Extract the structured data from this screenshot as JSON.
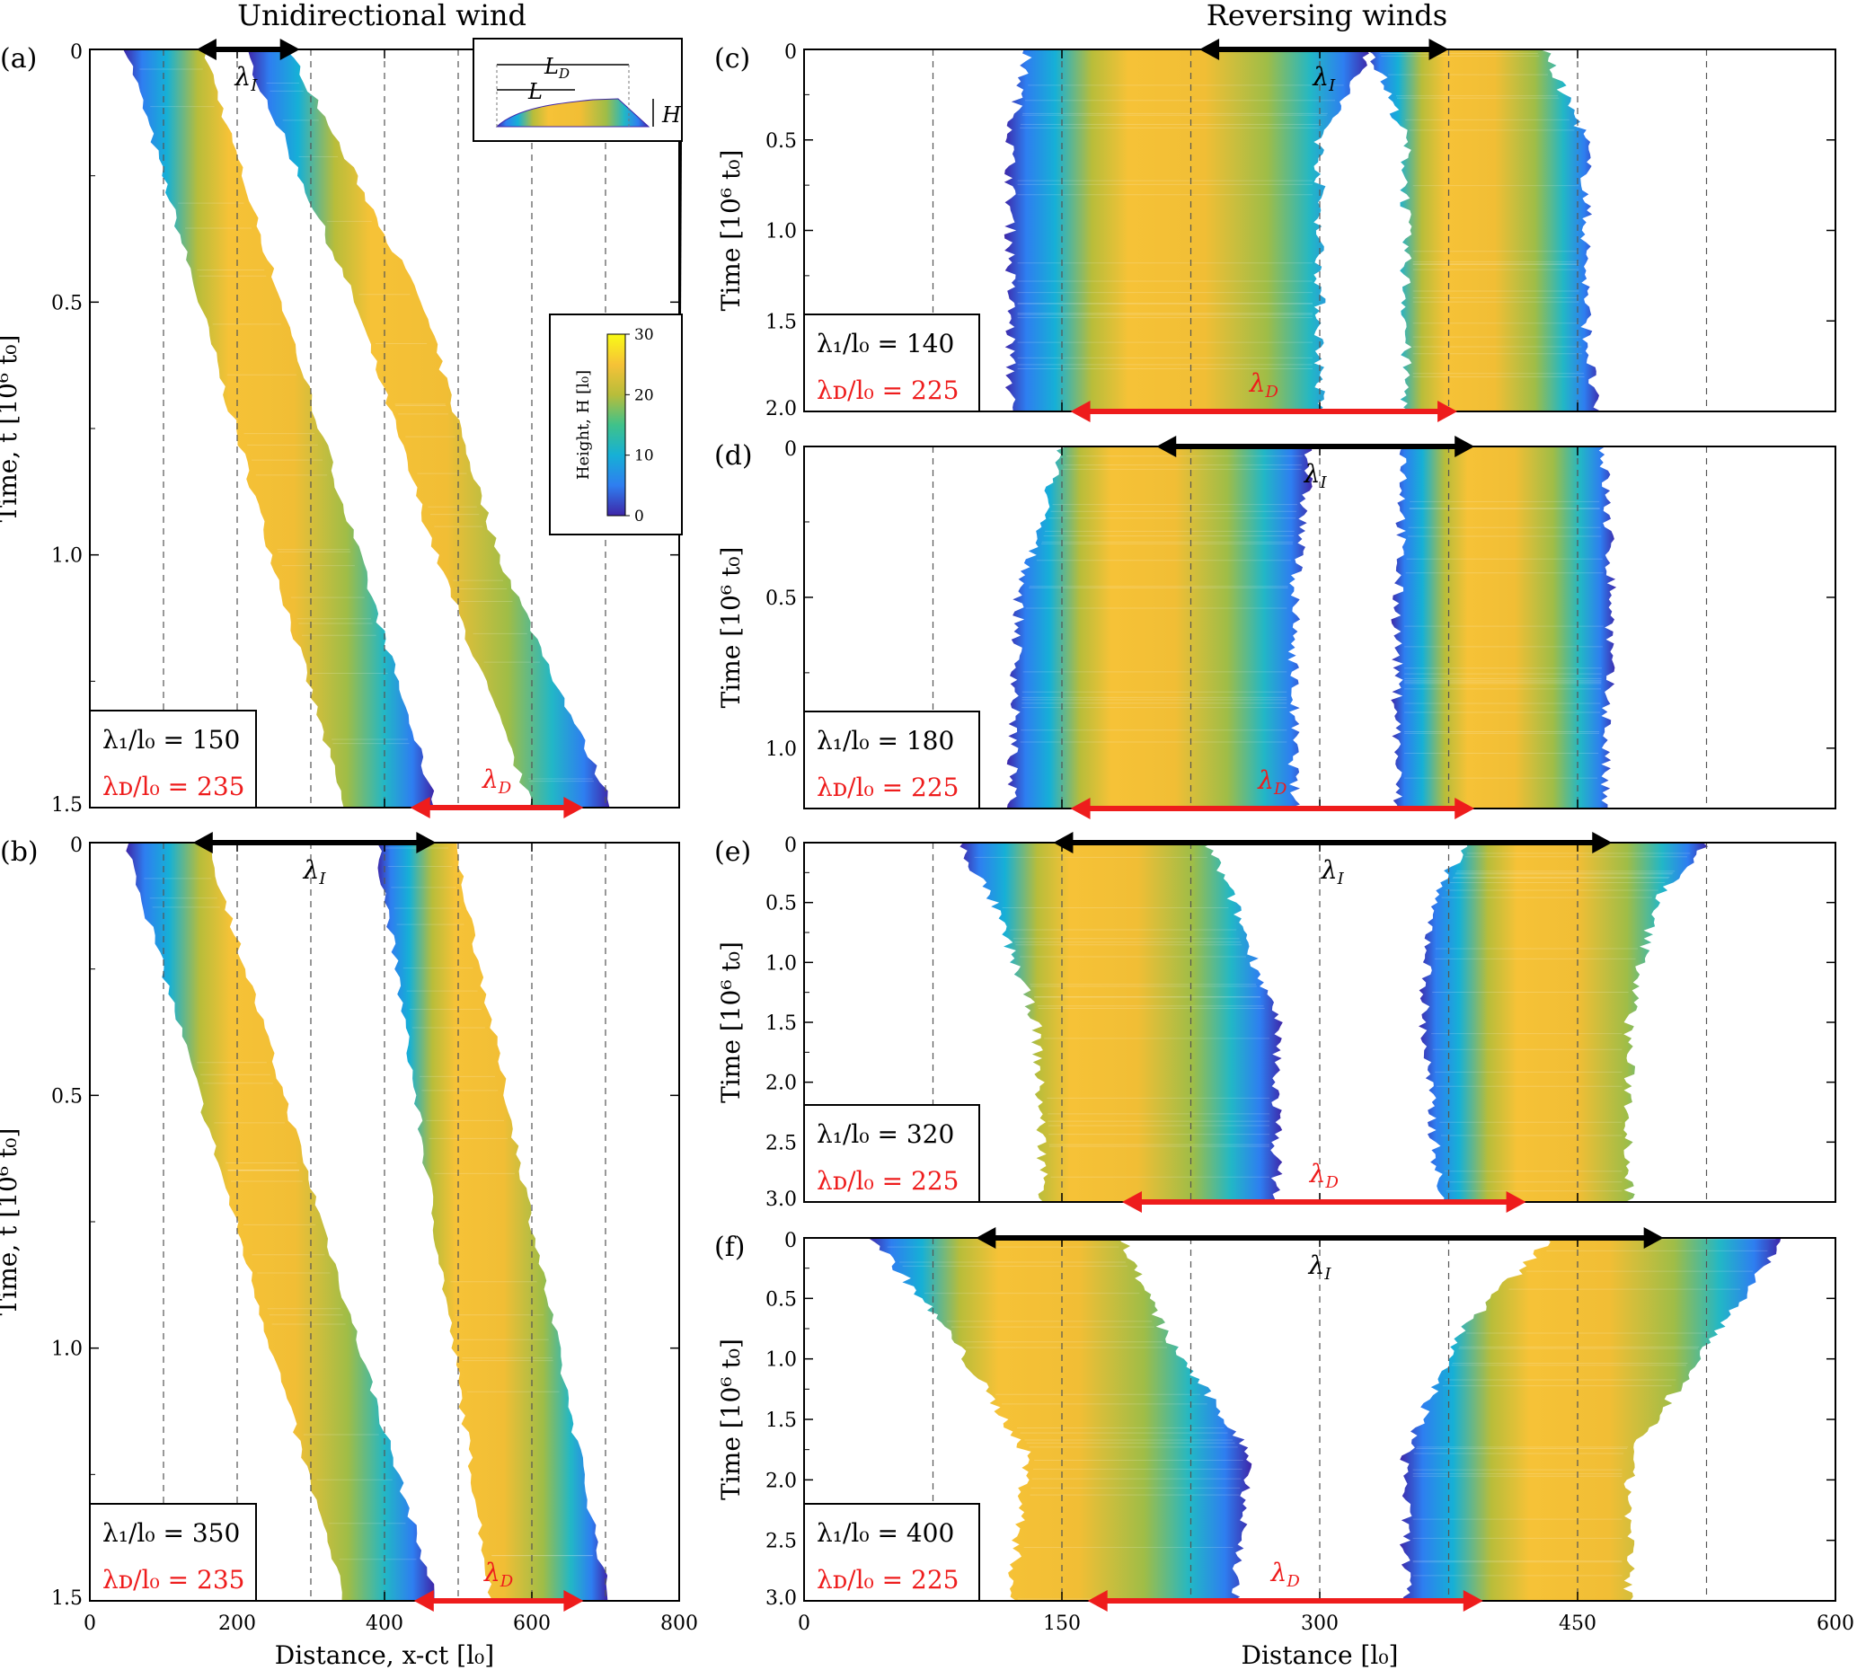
{
  "figure": {
    "left_heading": "Unidirectional wind",
    "right_heading": "Reversing winds",
    "colors": {
      "arrow_interaction": "#000000",
      "arrow_dune": "#ee1c1c",
      "dune_label": "#ee1c1c",
      "frame": "#000000",
      "gridline": "#555555"
    },
    "colorbar": {
      "label": "Height, H [l₀]",
      "ticks": [
        "0",
        "10",
        "20",
        "30"
      ],
      "range": [
        0,
        30
      ],
      "colormap": [
        "#3e26a8",
        "#2e7ef0",
        "#16b0d6",
        "#3fc28a",
        "#b8bd3a",
        "#f6c237",
        "#f9fb15"
      ]
    },
    "inset": {
      "labels": [
        "L",
        "L",
        "D",
        "H"
      ],
      "description_labels": {
        "LD": "L",
        "LD_sub": "D",
        "L": "L",
        "H": "H"
      }
    }
  },
  "chart_data": [
    {
      "id": "a",
      "panel_label": "(a)",
      "type": "heatmap",
      "xlabel": "",
      "ylabel": "Time, t [10⁶ t₀]",
      "xlim": [
        0,
        800
      ],
      "ylim": [
        0,
        1.5
      ],
      "xticks": [
        0,
        200,
        400,
        600,
        800
      ],
      "xtick_labels": [
        "",
        "",
        "",
        "",
        ""
      ],
      "yticks": [
        0,
        0.5,
        1.0,
        1.5
      ],
      "ytick_labels": [
        "0",
        "0.5",
        "1.0",
        "1.5"
      ],
      "gridlines_x": [
        100,
        200,
        300,
        400,
        500,
        600,
        700
      ],
      "lambda_I_over_l0": 150,
      "lambda_D_over_l0": 235,
      "annotation_I": "λ₁/l₀ = 150",
      "annotation_D": "λᴅ/l₀ = 235",
      "arrow_I": [
        145,
        285
      ],
      "arrow_D": [
        435,
        670
      ],
      "dunes": [
        {
          "t": [
            0,
            1.5
          ],
          "left": [
            50,
            345
          ],
          "right": [
            155,
            470
          ]
        },
        {
          "t": [
            0,
            0.5,
            1.0,
            1.5
          ],
          "left": [
            210,
            360,
            470,
            600
          ],
          "right": [
            270,
            450,
            555,
            710
          ]
        }
      ]
    },
    {
      "id": "b",
      "panel_label": "(b)",
      "type": "heatmap",
      "xlabel": "Distance, x-ct [l₀]",
      "ylabel": "Time, t [10⁶ t₀]",
      "xlim": [
        0,
        800
      ],
      "ylim": [
        0,
        1.5
      ],
      "xticks": [
        0,
        200,
        400,
        600,
        800
      ],
      "xtick_labels": [
        "0",
        "200",
        "400",
        "600",
        "800"
      ],
      "yticks": [
        0,
        0.5,
        1.0,
        1.5
      ],
      "ytick_labels": [
        "0",
        "0.5",
        "1.0",
        "1.5"
      ],
      "gridlines_x": [
        100,
        200,
        300,
        400,
        500,
        600,
        700
      ],
      "lambda_I_over_l0": 350,
      "lambda_D_over_l0": 235,
      "annotation_I": "λ₁/l₀ = 350",
      "annotation_D": "λᴅ/l₀ = 235",
      "arrow_I": [
        140,
        470
      ],
      "arrow_D": [
        440,
        670
      ],
      "dunes": [
        {
          "t": [
            0,
            1.5
          ],
          "left": [
            50,
            345
          ],
          "right": [
            160,
            470
          ]
        },
        {
          "t": [
            0,
            1.5
          ],
          "left": [
            390,
            545
          ],
          "right": [
            495,
            705
          ]
        }
      ]
    },
    {
      "id": "c",
      "panel_label": "(c)",
      "type": "heatmap",
      "xlabel": "",
      "ylabel": "Time [10⁶ t₀]",
      "xlim": [
        0,
        600
      ],
      "ylim": [
        0,
        2.0
      ],
      "xticks": [
        0,
        150,
        300,
        450,
        600
      ],
      "yticks": [
        0,
        0.5,
        1.0,
        1.5,
        2.0
      ],
      "ytick_labels": [
        "0",
        "0.5",
        "1.0",
        "1.5",
        "2.0"
      ],
      "gridlines_x": [
        75,
        150,
        225,
        300,
        375,
        450,
        525
      ],
      "lambda_I_over_l0": 140,
      "lambda_D_over_l0": 225,
      "annotation_I": "λ₁/l₀ = 140",
      "annotation_D": "λᴅ/l₀ = 225",
      "arrow_I": [
        230,
        375
      ],
      "arrow_D": [
        155,
        380
      ],
      "dunes": [
        {
          "t": [
            0,
            0.5,
            1.5,
            2.0
          ],
          "left": [
            130,
            120,
            120,
            120
          ],
          "right": [
            330,
            300,
            300,
            300
          ]
        },
        {
          "t": [
            0,
            0.5,
            1.5,
            2.0
          ],
          "left": [
            330,
            350,
            350,
            350
          ],
          "right": [
            430,
            455,
            455,
            460
          ]
        }
      ]
    },
    {
      "id": "d",
      "panel_label": "(d)",
      "type": "heatmap",
      "xlabel": "",
      "ylabel": "Time [10⁶ t₀]",
      "xlim": [
        0,
        600
      ],
      "ylim": [
        0,
        1.2
      ],
      "xticks": [
        0,
        150,
        300,
        450,
        600
      ],
      "yticks": [
        0,
        0.5,
        1.0
      ],
      "ytick_labels": [
        "0",
        "0.5",
        "1.0"
      ],
      "gridlines_x": [
        75,
        150,
        225,
        300,
        375,
        450,
        525
      ],
      "lambda_I_over_l0": 180,
      "lambda_D_over_l0": 225,
      "annotation_I": "λ₁/l₀ = 180",
      "annotation_D": "λᴅ/l₀ = 225",
      "arrow_I": [
        205,
        390
      ],
      "arrow_D": [
        155,
        390
      ],
      "dunes": [
        {
          "t": [
            0,
            0.5,
            1.2
          ],
          "left": [
            150,
            125,
            120
          ],
          "right": [
            295,
            285,
            285
          ]
        },
        {
          "t": [
            0,
            0.5,
            1.2
          ],
          "left": [
            350,
            345,
            345
          ],
          "right": [
            465,
            470,
            465
          ]
        }
      ]
    },
    {
      "id": "e",
      "panel_label": "(e)",
      "type": "heatmap",
      "xlabel": "",
      "ylabel": "Time [10⁶ t₀]",
      "xlim": [
        0,
        600
      ],
      "ylim": [
        0,
        3.0
      ],
      "xticks": [
        0,
        150,
        300,
        450,
        600
      ],
      "yticks": [
        0,
        0.5,
        1.0,
        1.5,
        2.0,
        2.5,
        3.0
      ],
      "ytick_labels": [
        "0",
        "0.5",
        "1.0",
        "1.5",
        "2.0",
        "2.5",
        "3.0"
      ],
      "gridlines_x": [
        75,
        150,
        225,
        300,
        375,
        450,
        525
      ],
      "lambda_I_over_l0": 320,
      "lambda_D_over_l0": 225,
      "annotation_I": "λ₁/l₀ = 320",
      "annotation_D": "λᴅ/l₀ = 225",
      "arrow_I": [
        145,
        470
      ],
      "arrow_D": [
        185,
        420
      ],
      "dunes": [
        {
          "t": [
            0,
            0.5,
            1.5,
            3.0
          ],
          "left": [
            90,
            110,
            135,
            140
          ],
          "right": [
            235,
            250,
            275,
            275
          ]
        },
        {
          "t": [
            0,
            0.5,
            1.5,
            3.0
          ],
          "left": [
            385,
            365,
            360,
            370
          ],
          "right": [
            525,
            495,
            480,
            480
          ]
        }
      ]
    },
    {
      "id": "f",
      "panel_label": "(f)",
      "type": "heatmap",
      "xlabel": "Distance [l₀]",
      "ylabel": "Time [10⁶ t₀]",
      "xlim": [
        0,
        600
      ],
      "ylim": [
        0,
        3.0
      ],
      "xticks": [
        0,
        150,
        300,
        450,
        600
      ],
      "xtick_labels": [
        "0",
        "150",
        "300",
        "450",
        "600"
      ],
      "yticks": [
        0,
        0.5,
        1.0,
        1.5,
        2.0,
        2.5,
        3.0
      ],
      "ytick_labels": [
        "0",
        "0.5",
        "1.0",
        "1.5",
        "2.0",
        "2.5",
        "3.0"
      ],
      "gridlines_x": [
        75,
        150,
        225,
        300,
        375,
        450,
        525
      ],
      "lambda_I_over_l0": 400,
      "lambda_D_over_l0": 225,
      "annotation_I": "λ₁/l₀ = 400",
      "annotation_D": "λᴅ/l₀ = 225",
      "arrow_I": [
        100,
        500
      ],
      "arrow_D": [
        165,
        395
      ],
      "dunes": [
        {
          "t": [
            0,
            0.8,
            1.8,
            3.0
          ],
          "left": [
            40,
            85,
            130,
            120
          ],
          "right": [
            185,
            210,
            260,
            250
          ]
        },
        {
          "t": [
            0,
            0.8,
            1.8,
            3.0
          ],
          "left": [
            435,
            380,
            350,
            350
          ],
          "right": [
            570,
            530,
            480,
            480
          ]
        }
      ]
    }
  ]
}
